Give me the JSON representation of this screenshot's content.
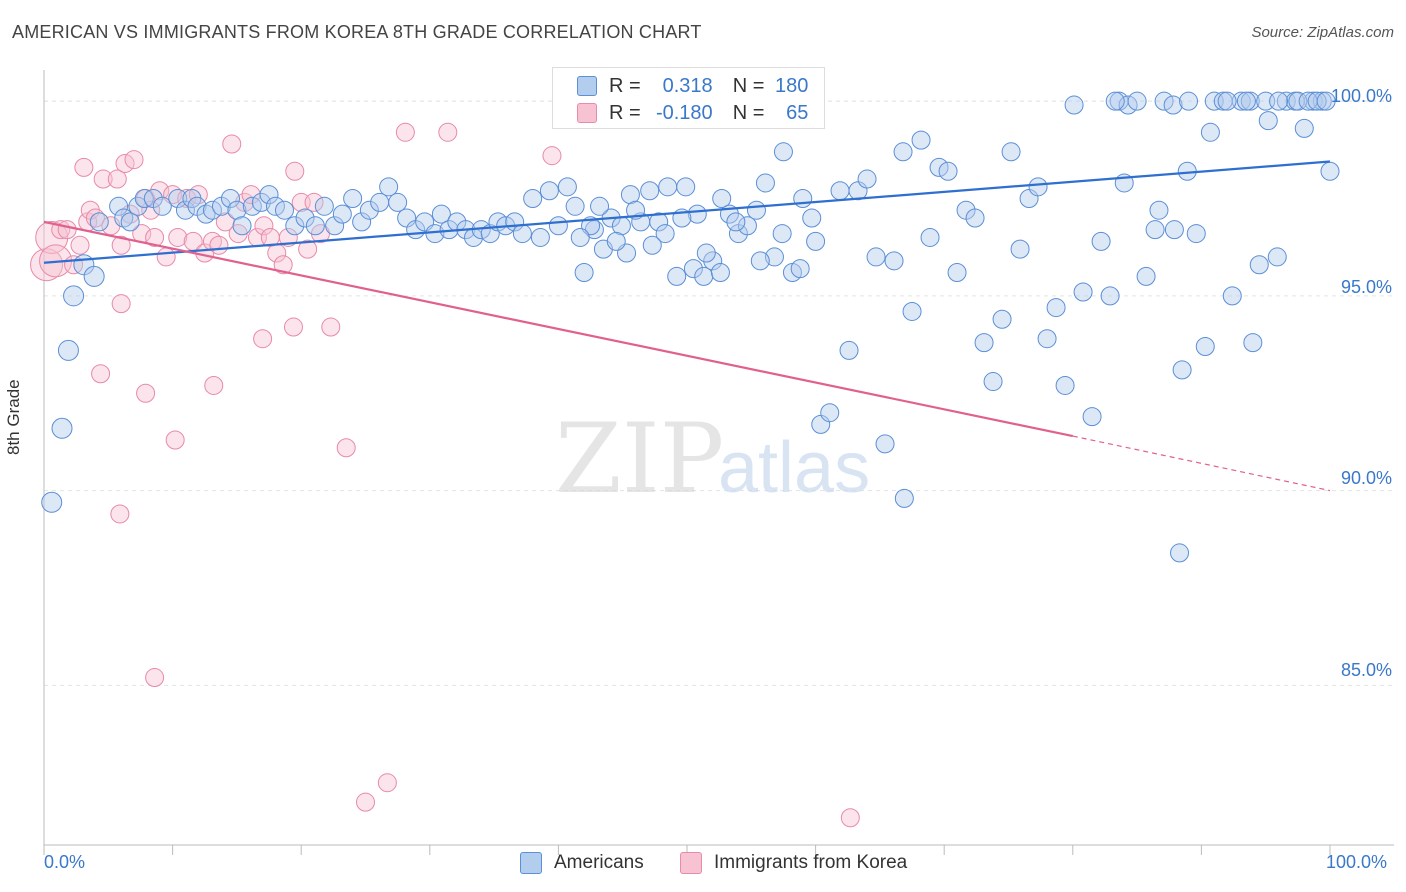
{
  "header": {
    "title": "AMERICAN VS IMMIGRANTS FROM KOREA 8TH GRADE CORRELATION CHART",
    "source": "Source: ZipAtlas.com"
  },
  "watermark": {
    "zip": "ZIP",
    "atlas": "atlas"
  },
  "legend": {
    "r_label": "R =",
    "n_label": "N =",
    "americans": {
      "r": "0.318",
      "n": "180"
    },
    "korea": {
      "r": "-0.180",
      "n": "65"
    }
  },
  "colors": {
    "blue_fill": "#b3cdee",
    "blue_stroke": "#5b8fd6",
    "blue_line": "#2f6fcf",
    "pink_fill": "#f7c3d2",
    "pink_stroke": "#e88aa8",
    "pink_line": "#e0608e",
    "axis_text": "#3a78c9"
  },
  "chart_data": {
    "type": "scatter",
    "title": "AMERICAN VS IMMIGRANTS FROM KOREA 8TH GRADE CORRELATION CHART",
    "xlabel": "",
    "ylabel": "8th Grade",
    "xlim": [
      0,
      100
    ],
    "ylim": [
      80.9,
      100.8
    ],
    "x_tick_labels": [
      "0.0%",
      "100.0%"
    ],
    "y_ticks": [
      85,
      90,
      95,
      100
    ],
    "y_tick_labels": [
      "85.0%",
      "90.0%",
      "95.0%",
      "100.0%"
    ],
    "grid": true,
    "legend_position": "bottom-center",
    "series": [
      {
        "name": "Americans",
        "r": 0.318,
        "n": 180,
        "trend": {
          "x": [
            0,
            100
          ],
          "y": [
            95.85,
            98.45
          ]
        },
        "points": [
          [
            0.6,
            89.7
          ],
          [
            1.4,
            91.6
          ],
          [
            1.9,
            93.6
          ],
          [
            2.3,
            95.0
          ],
          [
            3.1,
            95.8
          ],
          [
            3.9,
            95.5
          ],
          [
            4.3,
            96.9
          ],
          [
            5.8,
            97.3
          ],
          [
            6.2,
            97.0
          ],
          [
            6.7,
            96.9
          ],
          [
            7.3,
            97.3
          ],
          [
            7.8,
            97.5
          ],
          [
            8.5,
            97.5
          ],
          [
            9.2,
            97.3
          ],
          [
            10.4,
            97.5
          ],
          [
            11.0,
            97.2
          ],
          [
            11.5,
            97.5
          ],
          [
            11.9,
            97.3
          ],
          [
            12.6,
            97.1
          ],
          [
            13.1,
            97.2
          ],
          [
            13.8,
            97.3
          ],
          [
            14.5,
            97.5
          ],
          [
            15.0,
            97.2
          ],
          [
            15.4,
            96.8
          ],
          [
            16.2,
            97.3
          ],
          [
            16.9,
            97.4
          ],
          [
            17.5,
            97.6
          ],
          [
            18.0,
            97.3
          ],
          [
            18.7,
            97.2
          ],
          [
            19.5,
            96.8
          ],
          [
            20.3,
            97.0
          ],
          [
            21.1,
            96.8
          ],
          [
            21.8,
            97.3
          ],
          [
            22.6,
            96.8
          ],
          [
            23.2,
            97.1
          ],
          [
            24.0,
            97.5
          ],
          [
            24.7,
            96.9
          ],
          [
            25.3,
            97.2
          ],
          [
            26.1,
            97.4
          ],
          [
            26.8,
            97.8
          ],
          [
            27.5,
            97.4
          ],
          [
            28.2,
            97.0
          ],
          [
            28.9,
            96.7
          ],
          [
            29.6,
            96.9
          ],
          [
            30.4,
            96.6
          ],
          [
            30.9,
            97.1
          ],
          [
            31.5,
            96.7
          ],
          [
            32.1,
            96.9
          ],
          [
            32.8,
            96.7
          ],
          [
            33.4,
            96.5
          ],
          [
            34.0,
            96.7
          ],
          [
            34.7,
            96.6
          ],
          [
            35.3,
            96.9
          ],
          [
            35.9,
            96.8
          ],
          [
            36.6,
            96.9
          ],
          [
            37.2,
            96.6
          ],
          [
            38.0,
            97.5
          ],
          [
            38.6,
            96.5
          ],
          [
            39.3,
            97.7
          ],
          [
            40.0,
            96.8
          ],
          [
            40.7,
            97.8
          ],
          [
            41.3,
            97.3
          ],
          [
            42.0,
            95.6
          ],
          [
            42.8,
            96.7
          ],
          [
            43.5,
            96.2
          ],
          [
            44.1,
            97.0
          ],
          [
            44.9,
            96.8
          ],
          [
            45.6,
            97.6
          ],
          [
            46.4,
            96.9
          ],
          [
            47.1,
            97.7
          ],
          [
            47.8,
            96.9
          ],
          [
            48.5,
            97.8
          ],
          [
            49.2,
            95.5
          ],
          [
            49.9,
            97.8
          ],
          [
            50.5,
            95.7
          ],
          [
            51.3,
            95.5
          ],
          [
            52.0,
            95.9
          ],
          [
            52.7,
            97.5
          ],
          [
            53.3,
            97.1
          ],
          [
            54.0,
            96.6
          ],
          [
            54.7,
            96.8
          ],
          [
            55.4,
            97.2
          ],
          [
            56.1,
            97.9
          ],
          [
            56.8,
            96.0
          ],
          [
            57.5,
            98.7
          ],
          [
            58.2,
            95.6
          ],
          [
            59.0,
            97.5
          ],
          [
            59.7,
            97.0
          ],
          [
            60.4,
            91.7
          ],
          [
            61.1,
            92.0
          ],
          [
            61.9,
            97.7
          ],
          [
            62.6,
            93.6
          ],
          [
            63.3,
            97.7
          ],
          [
            64.0,
            98.0
          ],
          [
            64.7,
            96.0
          ],
          [
            65.4,
            91.2
          ],
          [
            66.1,
            95.9
          ],
          [
            66.8,
            98.7
          ],
          [
            67.5,
            94.6
          ],
          [
            68.2,
            99.0
          ],
          [
            68.9,
            96.5
          ],
          [
            69.6,
            98.3
          ],
          [
            70.3,
            98.2
          ],
          [
            71.0,
            95.6
          ],
          [
            71.7,
            97.2
          ],
          [
            72.4,
            97.0
          ],
          [
            73.1,
            93.8
          ],
          [
            73.8,
            92.8
          ],
          [
            74.5,
            94.4
          ],
          [
            75.2,
            98.7
          ],
          [
            75.9,
            96.2
          ],
          [
            76.6,
            97.5
          ],
          [
            77.3,
            97.8
          ],
          [
            78.0,
            93.9
          ],
          [
            78.7,
            94.7
          ],
          [
            79.4,
            92.7
          ],
          [
            80.1,
            99.9
          ],
          [
            80.8,
            95.1
          ],
          [
            81.5,
            91.9
          ],
          [
            82.2,
            96.4
          ],
          [
            82.9,
            95.0
          ],
          [
            83.6,
            100.0
          ],
          [
            84.3,
            99.9
          ],
          [
            85.0,
            100.0
          ],
          [
            85.7,
            95.5
          ],
          [
            86.4,
            96.7
          ],
          [
            87.1,
            100.0
          ],
          [
            87.8,
            99.9
          ],
          [
            88.5,
            93.1
          ],
          [
            88.9,
            98.2
          ],
          [
            89.6,
            96.6
          ],
          [
            90.3,
            93.7
          ],
          [
            91.0,
            100.0
          ],
          [
            91.7,
            100.0
          ],
          [
            92.4,
            95.0
          ],
          [
            93.1,
            100.0
          ],
          [
            93.8,
            100.0
          ],
          [
            94.5,
            95.8
          ],
          [
            95.2,
            99.5
          ],
          [
            95.9,
            96.0
          ],
          [
            96.6,
            100.0
          ],
          [
            97.3,
            100.0
          ],
          [
            98.0,
            99.3
          ],
          [
            98.7,
            100.0
          ],
          [
            99.4,
            100.0
          ],
          [
            100.0,
            98.2
          ],
          [
            66.9,
            89.8
          ],
          [
            83.3,
            100.0
          ],
          [
            84.0,
            97.9
          ],
          [
            86.7,
            97.2
          ],
          [
            87.9,
            96.7
          ],
          [
            89.0,
            100.0
          ],
          [
            90.7,
            99.2
          ],
          [
            92.0,
            100.0
          ],
          [
            93.5,
            100.0
          ],
          [
            94.0,
            93.8
          ],
          [
            95.0,
            100.0
          ],
          [
            96.0,
            100.0
          ],
          [
            97.5,
            100.0
          ],
          [
            98.3,
            100.0
          ],
          [
            99.0,
            100.0
          ],
          [
            99.7,
            100.0
          ],
          [
            88.3,
            88.4
          ],
          [
            60.0,
            96.4
          ],
          [
            58.8,
            95.7
          ],
          [
            57.4,
            96.6
          ],
          [
            55.7,
            95.9
          ],
          [
            53.8,
            96.9
          ],
          [
            52.6,
            95.6
          ],
          [
            51.5,
            96.1
          ],
          [
            50.8,
            97.1
          ],
          [
            49.6,
            97.0
          ],
          [
            48.3,
            96.6
          ],
          [
            47.3,
            96.3
          ],
          [
            46.0,
            97.2
          ],
          [
            45.3,
            96.1
          ],
          [
            44.5,
            96.4
          ],
          [
            43.2,
            97.3
          ],
          [
            42.5,
            96.8
          ],
          [
            41.7,
            96.5
          ]
        ]
      },
      {
        "name": "Immigrants from Korea",
        "r": -0.18,
        "n": 65,
        "trend": {
          "x": [
            0,
            80
          ],
          "y": [
            96.9,
            91.4
          ]
        },
        "trend_extension": {
          "x": [
            80,
            100
          ],
          "y": [
            91.4,
            90.0
          ]
        },
        "points": [
          [
            0.2,
            95.8
          ],
          [
            0.6,
            96.5
          ],
          [
            0.9,
            95.9
          ],
          [
            1.3,
            96.7
          ],
          [
            1.8,
            96.7
          ],
          [
            2.3,
            95.8
          ],
          [
            2.8,
            96.3
          ],
          [
            3.4,
            96.9
          ],
          [
            3.6,
            97.2
          ],
          [
            4.0,
            97.0
          ],
          [
            4.6,
            98.0
          ],
          [
            5.2,
            96.8
          ],
          [
            5.7,
            98.0
          ],
          [
            6.0,
            96.3
          ],
          [
            6.3,
            98.4
          ],
          [
            6.7,
            97.1
          ],
          [
            7.0,
            98.5
          ],
          [
            7.6,
            96.6
          ],
          [
            7.9,
            97.5
          ],
          [
            8.3,
            97.2
          ],
          [
            8.6,
            96.5
          ],
          [
            9.0,
            97.7
          ],
          [
            9.5,
            96.0
          ],
          [
            10.0,
            97.6
          ],
          [
            10.4,
            96.5
          ],
          [
            11.1,
            97.5
          ],
          [
            11.6,
            96.4
          ],
          [
            12.0,
            97.6
          ],
          [
            12.5,
            96.1
          ],
          [
            13.1,
            96.4
          ],
          [
            13.6,
            96.3
          ],
          [
            14.1,
            96.9
          ],
          [
            14.6,
            98.9
          ],
          [
            15.1,
            96.6
          ],
          [
            15.6,
            97.4
          ],
          [
            16.1,
            97.6
          ],
          [
            16.6,
            96.5
          ],
          [
            17.1,
            96.8
          ],
          [
            17.6,
            96.5
          ],
          [
            18.1,
            96.1
          ],
          [
            18.6,
            95.8
          ],
          [
            19.0,
            96.5
          ],
          [
            19.5,
            98.2
          ],
          [
            20.0,
            97.4
          ],
          [
            20.5,
            96.2
          ],
          [
            21.0,
            97.4
          ],
          [
            21.5,
            96.6
          ],
          [
            8.6,
            85.2
          ],
          [
            5.9,
            89.4
          ],
          [
            3.1,
            98.3
          ],
          [
            6.0,
            94.8
          ],
          [
            4.4,
            93.0
          ],
          [
            7.9,
            92.5
          ],
          [
            10.2,
            91.3
          ],
          [
            13.2,
            92.7
          ],
          [
            17.0,
            93.9
          ],
          [
            19.4,
            94.2
          ],
          [
            22.3,
            94.2
          ],
          [
            23.5,
            91.1
          ],
          [
            25.0,
            82.0
          ],
          [
            26.7,
            82.5
          ],
          [
            28.1,
            99.2
          ],
          [
            31.4,
            99.2
          ],
          [
            39.5,
            98.6
          ],
          [
            62.7,
            81.6
          ]
        ]
      }
    ]
  }
}
